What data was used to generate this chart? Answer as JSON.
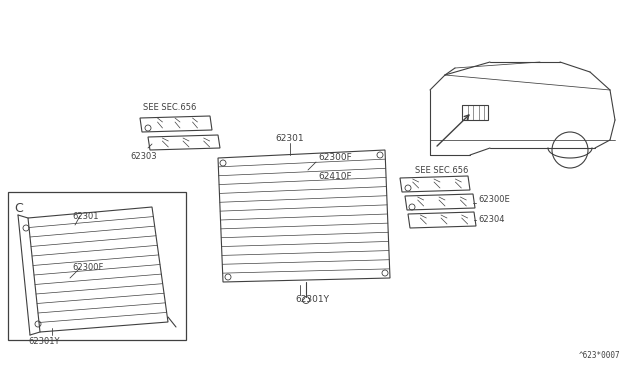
{
  "bg_color": "#ffffff",
  "line_color": "#404040",
  "title_code": "^623*0007",
  "labels": {
    "62301_top": "62301",
    "62300F_top": "62300F",
    "62410F": "62410F",
    "62303": "62303",
    "SEE_SEC_656_left": "SEE SEC.656",
    "SEE_SEC_656_right": "SEE SEC.656",
    "62301_inset": "62301",
    "62300F_inset": "62300F",
    "62301Y_inset": "62301Y",
    "62301Y_main": "62301Y",
    "62300E": "62300E",
    "62304": "62304",
    "C_label": "C"
  },
  "font_size": 6.5,
  "diagram_color": "#404040"
}
